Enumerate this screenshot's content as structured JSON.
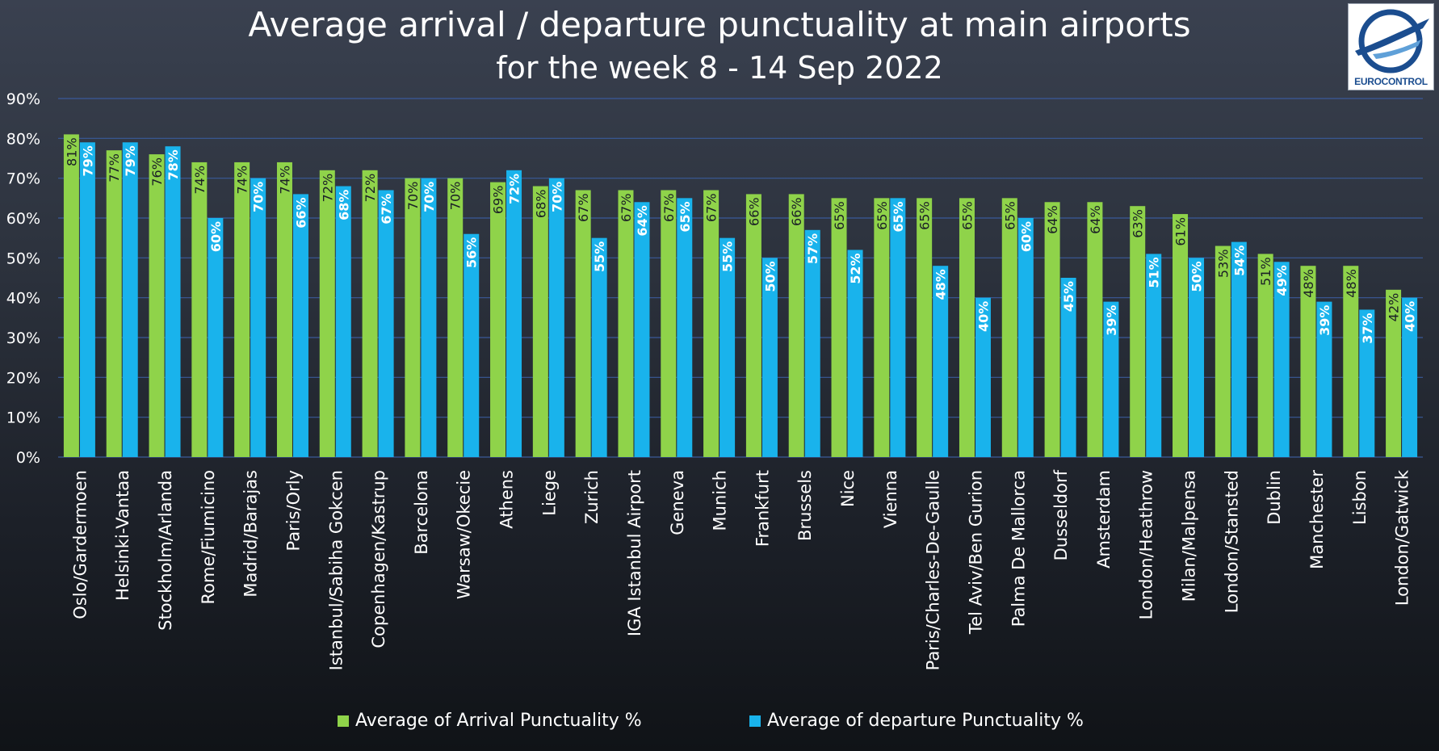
{
  "header": {
    "title": "Average arrival / departure punctuality  at main airports",
    "subtitle": "for the week 8  - 14 Sep 2022"
  },
  "logo": {
    "text": "EUROCONTROL",
    "icon": "eurocontrol-logo-icon"
  },
  "colors": {
    "arrival": "#8fd34a",
    "departure": "#19b3ec",
    "grid": "#3a5a9a"
  },
  "chart_data": {
    "type": "bar",
    "categories": [
      "Oslo/Gardermoen",
      "Helsinki-Vantaa",
      "Stockholm/Arlanda",
      "Rome/Fiumicino",
      "Madrid/Barajas",
      "Paris/Orly",
      "Istanbul/Sabiha Gokcen",
      "Copenhagen/Kastrup",
      "Barcelona",
      "Warsaw/Okecie",
      "Athens",
      "Liege",
      "Zurich",
      "IGA Istanbul Airport",
      "Geneva",
      "Munich",
      "Frankfurt",
      "Brussels",
      "Nice",
      "Vienna",
      "Paris/Charles-De-Gaulle",
      "Tel Aviv/Ben Gurion",
      "Palma De Mallorca",
      "Dusseldorf",
      "Amsterdam",
      "London/Heathrow",
      "Milan/Malpensa",
      "London/Stansted",
      "Dublin",
      "Manchester",
      "Lisbon",
      "London/Gatwick"
    ],
    "series": [
      {
        "name": "Average of Arrival Punctuality %",
        "values": [
          81,
          77,
          76,
          74,
          74,
          74,
          72,
          72,
          70,
          70,
          69,
          68,
          67,
          67,
          67,
          67,
          66,
          66,
          65,
          65,
          65,
          65,
          65,
          64,
          64,
          63,
          61,
          53,
          51,
          48,
          48,
          42
        ],
        "labels": [
          "81%",
          "77%",
          "76%",
          "74%",
          "74%",
          "74%",
          "72%",
          "72%",
          "70%",
          "70%",
          "69%",
          "68%",
          "67%",
          "67%",
          "67%",
          "67%",
          "66%",
          "66%",
          "65%",
          "65%",
          "65%",
          "65%",
          "65%",
          "64%",
          "64%",
          "63%",
          "61%",
          "53%",
          "51%",
          "48%",
          "48%",
          "42%"
        ]
      },
      {
        "name": "Average of departure Punctuality %",
        "values": [
          79,
          79,
          78,
          60,
          70,
          66,
          68,
          67,
          70,
          56,
          72,
          70,
          55,
          64,
          65,
          55,
          50,
          57,
          52,
          65,
          48,
          40,
          60,
          45,
          39,
          51,
          50,
          54,
          49,
          39,
          37,
          40
        ],
        "labels": [
          "79%",
          "79%",
          "78%",
          "60%",
          "70%",
          "66%",
          "68%",
          "67%",
          "70%",
          "56%",
          "72%",
          "70%",
          "55%",
          "64%",
          "65%",
          "55%",
          "50%",
          "57%",
          "52%",
          "65%",
          "48%",
          "40%",
          "60%",
          "45%",
          "39%",
          "51%",
          "50%",
          "54%",
          "49%",
          "39%",
          "37%",
          "40%"
        ]
      }
    ],
    "yticks": [
      "0%",
      "10%",
      "20%",
      "30%",
      "40%",
      "50%",
      "60%",
      "70%",
      "80%",
      "90%"
    ],
    "ylim": [
      0,
      90
    ],
    "grid": true,
    "legend_position": "bottom"
  }
}
